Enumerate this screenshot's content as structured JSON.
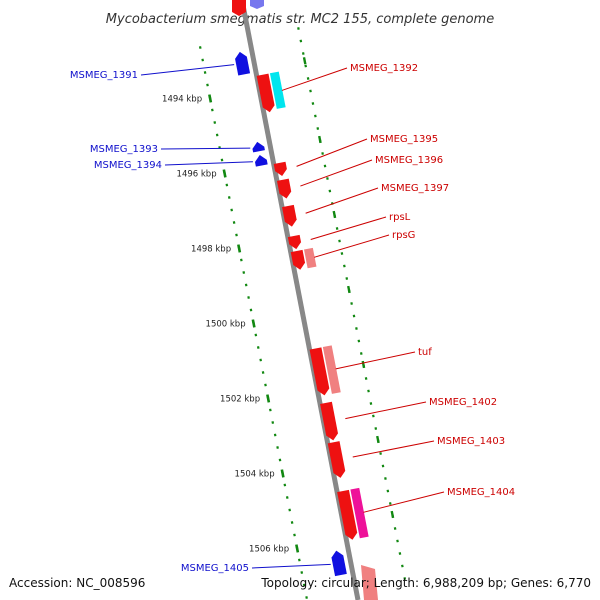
{
  "title": "Mycobacterium smegmatis str. MC2 155, complete genome",
  "footer": {
    "accession": "Accession: NC_008596",
    "summary": "Topology: circular; Length: 6,988,209 bp; Genes: 6,770"
  },
  "ticks": [
    {
      "pos": 1494,
      "label": "1494 kbp"
    },
    {
      "pos": 1496,
      "label": "1496 kbp"
    },
    {
      "pos": 1498,
      "label": "1498 kbp"
    },
    {
      "pos": 1500,
      "label": "1500 kbp"
    },
    {
      "pos": 1502,
      "label": "1502 kbp"
    },
    {
      "pos": 1504,
      "label": "1504 kbp"
    },
    {
      "pos": 1506,
      "label": "1506 kbp"
    }
  ],
  "genes": [
    {
      "name": "MSMEG_1391",
      "strand": "-",
      "start": 1492.95,
      "end": 1493.55,
      "color": "#1010e0",
      "label_color": "#1010cc"
    },
    {
      "name": "MSMEG_1392",
      "strand": "+",
      "start": 1493.65,
      "end": 1494.65,
      "color": "#ee1111",
      "label_color": "#cc0000"
    },
    {
      "name": "MSMEG_1393",
      "strand": "-",
      "start": 1495.35,
      "end": 1495.6,
      "color": "#1010e0",
      "label_color": "#1010cc"
    },
    {
      "name": "MSMEG_1394",
      "strand": "-",
      "start": 1495.7,
      "end": 1495.98,
      "color": "#1010e0",
      "label_color": "#1010cc"
    },
    {
      "name": "MSMEG_1395",
      "strand": "+",
      "start": 1496.0,
      "end": 1496.35,
      "color": "#ee1111",
      "label_color": "#cc0000"
    },
    {
      "name": "MSMEG_1396",
      "strand": "+",
      "start": 1496.45,
      "end": 1496.95,
      "color": "#ee1111",
      "label_color": "#cc0000"
    },
    {
      "name": "MSMEG_1397",
      "strand": "+",
      "start": 1497.15,
      "end": 1497.7,
      "color": "#ee1111",
      "label_color": "#cc0000"
    },
    {
      "name": "rpsL",
      "strand": "+",
      "start": 1497.95,
      "end": 1498.3,
      "color": "#ee1111",
      "label_color": "#cc0000"
    },
    {
      "name": "rpsG",
      "strand": "+",
      "start": 1498.35,
      "end": 1498.85,
      "color": "#ee1111",
      "label_color": "#cc0000"
    },
    {
      "name": "tuf",
      "strand": "+",
      "start": 1500.95,
      "end": 1502.2,
      "color": "#ee1111",
      "label_color": "#cc0000"
    },
    {
      "name": "MSMEG_1402",
      "strand": "+",
      "start": 1502.4,
      "end": 1503.4,
      "color": "#ee1111",
      "label_color": "#cc0000"
    },
    {
      "name": "MSMEG_1403",
      "strand": "+",
      "start": 1503.45,
      "end": 1504.4,
      "color": "#ee1111",
      "label_color": "#cc0000"
    },
    {
      "name": "MSMEG_1404",
      "strand": "+",
      "start": 1504.75,
      "end": 1506.05,
      "color": "#ee1111",
      "label_color": "#cc0000"
    },
    {
      "name": "MSMEG_1405",
      "strand": "-",
      "start": 1506.25,
      "end": 1506.9,
      "color": "#1010e0",
      "label_color": "#1010cc"
    }
  ],
  "features": [
    {
      "type": "rRNA-like",
      "start": 1493.65,
      "end": 1494.6,
      "color": "#00e5ee"
    },
    {
      "type": "CDS",
      "start": 1498.35,
      "end": 1498.85,
      "color": "#f08080"
    },
    {
      "type": "CDS",
      "start": 1500.95,
      "end": 1502.2,
      "color": "#f08080"
    },
    {
      "type": "CDS",
      "start": 1504.75,
      "end": 1506.05,
      "color": "#ee1199"
    }
  ]
}
